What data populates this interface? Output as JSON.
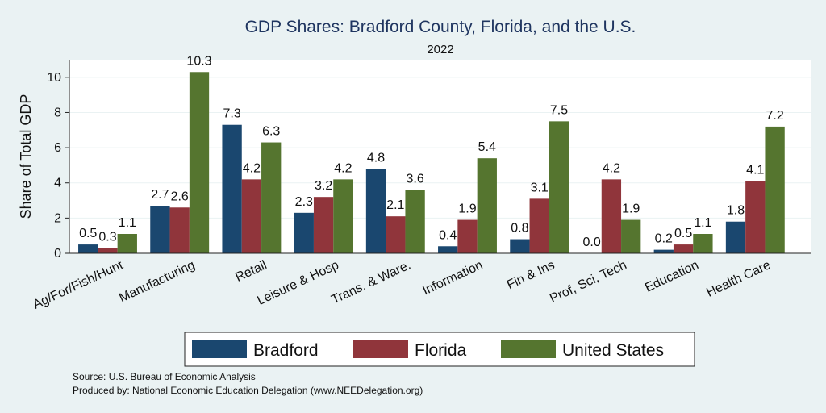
{
  "chart_data": {
    "type": "bar",
    "title": "GDP Shares: Bradford County, Florida, and the U.S.",
    "subtitle": "2022",
    "xlabel": "",
    "ylabel": "Share of Total GDP",
    "ylim": [
      0,
      11
    ],
    "yticks": [
      0,
      2,
      4,
      6,
      8,
      10
    ],
    "grid": true,
    "legend_position": "bottom",
    "categories": [
      "Ag/For/Fish/Hunt",
      "Manufacturing",
      "Retail",
      "Leisure & Hosp",
      "Trans. & Ware.",
      "Information",
      "Fin & Ins",
      "Prof, Sci, Tech",
      "Education",
      "Health Care"
    ],
    "series": [
      {
        "name": "Bradford",
        "color": "#1a476f",
        "values": [
          0.5,
          2.7,
          7.3,
          2.3,
          4.8,
          0.4,
          0.8,
          0.0,
          0.2,
          1.8
        ]
      },
      {
        "name": "Florida",
        "color": "#90353b",
        "values": [
          0.3,
          2.6,
          4.2,
          3.2,
          2.1,
          1.9,
          3.1,
          4.2,
          0.5,
          4.1
        ]
      },
      {
        "name": "United States",
        "color": "#55752f",
        "values": [
          1.1,
          10.3,
          6.3,
          4.2,
          3.6,
          5.4,
          7.5,
          1.9,
          1.1,
          7.2
        ]
      }
    ]
  },
  "notes": {
    "source": "Source: U.S. Bureau of Economic Analysis",
    "produced_by": "Produced by: National Economic Education Delegation (www.NEEDelegation.org)"
  }
}
